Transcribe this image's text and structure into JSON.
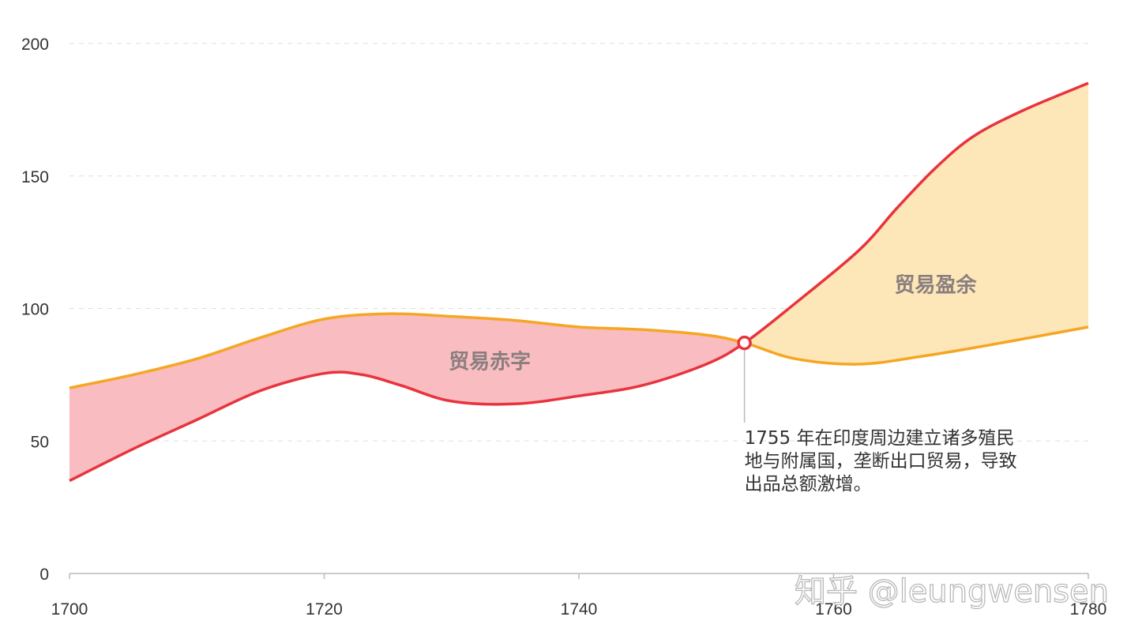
{
  "chart_data": {
    "type": "area",
    "title": "",
    "xlabel": "",
    "ylabel": "",
    "xlim": [
      1700,
      1780
    ],
    "ylim": [
      0,
      200
    ],
    "x_ticks": [
      1700,
      1720,
      1740,
      1760,
      1780
    ],
    "y_ticks": [
      0,
      50,
      100,
      150,
      200
    ],
    "grid": "horizontal dashed",
    "series": [
      {
        "color": "#f5a623",
        "x": [
          1700,
          1705,
          1710,
          1715,
          1720,
          1725,
          1730,
          1735,
          1740,
          1745,
          1750,
          1753,
          1757,
          1762,
          1767,
          1772,
          1780
        ],
        "y": [
          70,
          75,
          81,
          89,
          96,
          98,
          97,
          95.5,
          93,
          92,
          90,
          87,
          81,
          79,
          82,
          86,
          93
        ]
      },
      {
        "color": "#e8343e",
        "x": [
          1700,
          1705,
          1710,
          1715,
          1720,
          1723,
          1726,
          1730,
          1735,
          1740,
          1745,
          1750,
          1753,
          1757,
          1762,
          1765,
          1768,
          1771,
          1775,
          1780
        ],
        "y": [
          35,
          47,
          58,
          69,
          75.5,
          75,
          71,
          65,
          64,
          67,
          71,
          79,
          87,
          102,
          122,
          138,
          153,
          165,
          175,
          185
        ]
      }
    ],
    "fill_colors": {
      "deficit": "#f9bcc0",
      "surplus": "#fde6b8"
    },
    "area_labels": [
      {
        "text": "贸易赤字",
        "x": 1733,
        "y": 80
      },
      {
        "text": "贸易盈余",
        "x": 1768,
        "y": 109
      }
    ],
    "annotation": {
      "x": 1753,
      "y": 87,
      "lines": [
        "1755 年在印度周边建立诸多殖民",
        "地与附属国，垄断出口贸易，导致",
        "出品总额激增。"
      ]
    },
    "watermark": "知乎 @leungwensen"
  }
}
